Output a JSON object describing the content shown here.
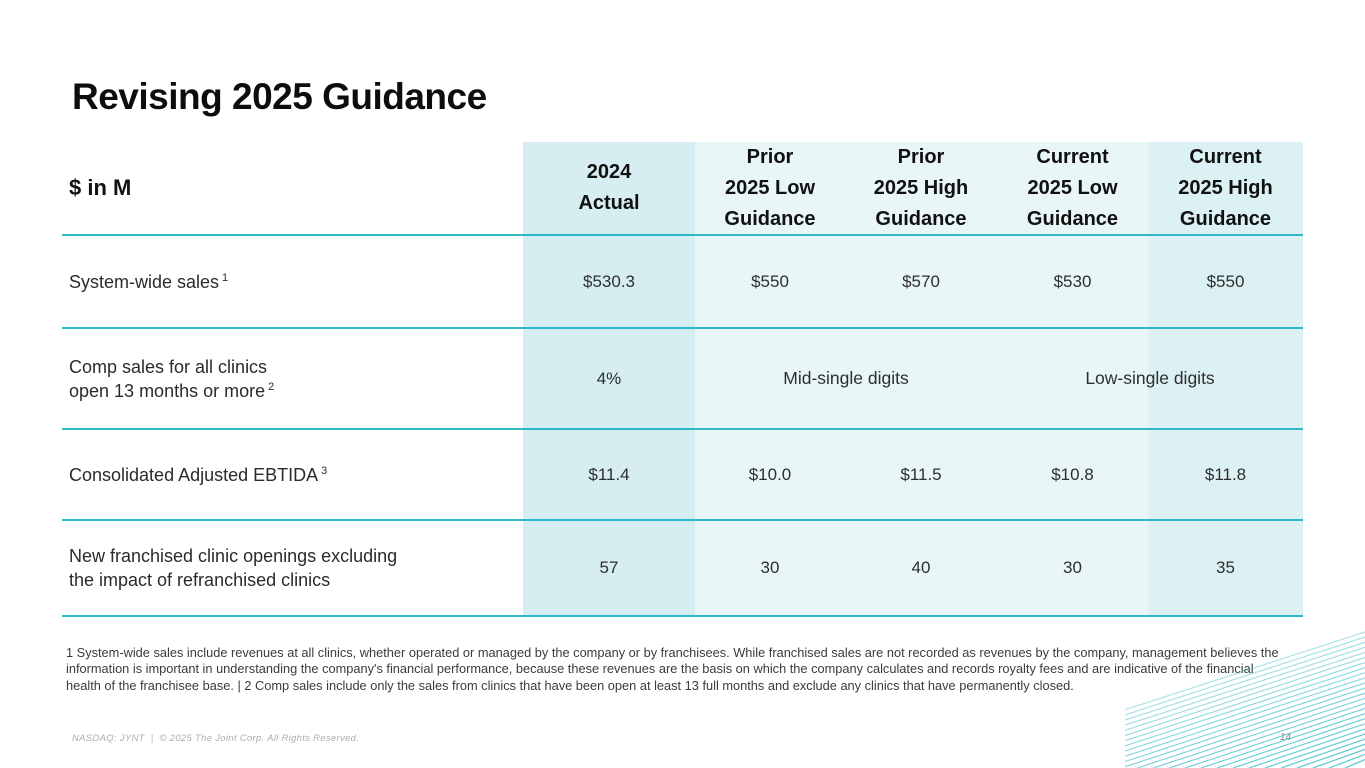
{
  "slide": {
    "title": "Revising 2025 Guidance",
    "page_number": "14",
    "footnote": "1 System-wide sales include revenues at all clinics, whether operated or managed by the company or by franchisees. While franchised sales are not recorded as revenues by the company, management believes the information is important  in understanding the company's financial performance, because these revenues are the basis on which the company calculates and records royalty fees and are indicative of the financial health of the franchisee base. | 2 Comp sales include only the sales from clinics that have been open at least 13 full months and exclude any clinics that have permanently closed.",
    "footer": {
      "ticker": "NASDAQ: JYNT",
      "divider": "|",
      "copyright": "© 2025 The Joint Corp. All Rights Reserved."
    }
  },
  "colors": {
    "accent_teal_line": "#2fb9c6",
    "band_2024_actual": "#d6eef1",
    "band_light": "#e8f6f8",
    "band_current_high": "#dcf1f3",
    "decor_stripe": "#49c2cd"
  },
  "table": {
    "header": {
      "units_label": "$ in M",
      "columns": [
        {
          "lines": [
            "2024",
            "Actual"
          ]
        },
        {
          "lines": [
            "Prior",
            "2025 Low",
            "Guidance"
          ]
        },
        {
          "lines": [
            "Prior",
            "2025 High",
            "Guidance"
          ]
        },
        {
          "lines": [
            "Current",
            "2025 Low",
            "Guidance"
          ]
        },
        {
          "lines": [
            "Current",
            "2025 High",
            "Guidance"
          ]
        }
      ]
    },
    "rows": [
      {
        "label": "System-wide sales",
        "sup": "1",
        "values": [
          "$530.3",
          "$550",
          "$570",
          "$530",
          "$550"
        ]
      },
      {
        "label_lines": [
          "Comp sales for all clinics",
          "open 13 months or more"
        ],
        "sup": "2",
        "value_2024": "4%",
        "merged": [
          "Mid-single digits",
          "Low-single digits"
        ]
      },
      {
        "label": "Consolidated Adjusted EBTIDA",
        "sup": "3",
        "values": [
          "$11.4",
          "$10.0",
          "$11.5",
          "$10.8",
          "$11.8"
        ]
      },
      {
        "label_lines": [
          "New franchised clinic openings excluding",
          "the impact of refranchised clinics"
        ],
        "values": [
          "57",
          "30",
          "40",
          "30",
          "35"
        ]
      }
    ]
  }
}
